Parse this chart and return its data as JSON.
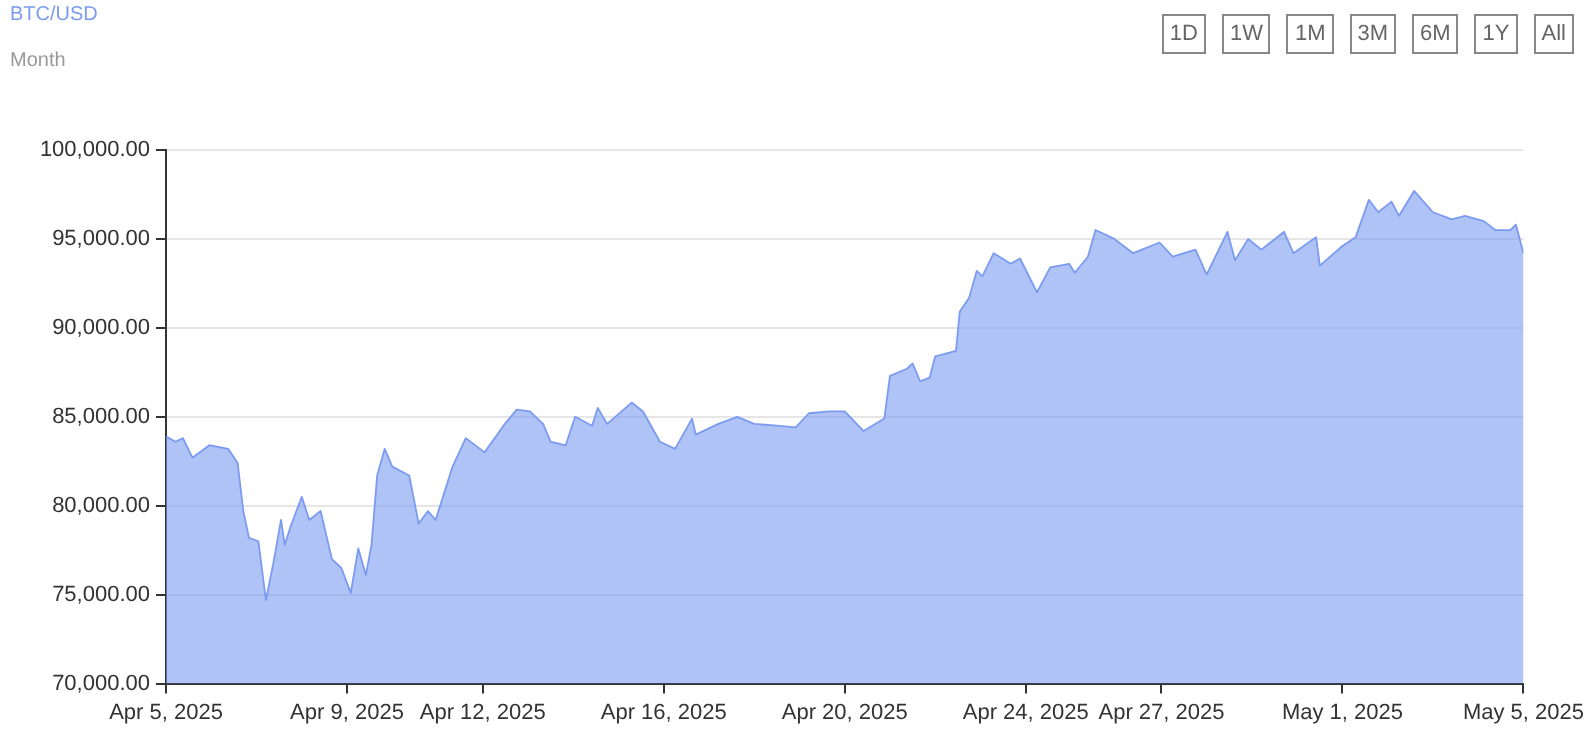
{
  "chart_data": {
    "type": "area",
    "title": "BTC/USD",
    "subtitle": "Month",
    "annotations": [
      "1D",
      "1W",
      "1M",
      "3M",
      "6M",
      "1Y",
      "All"
    ],
    "x": [
      "2025-04-05T00:00",
      "2025-04-05T05:00",
      "2025-04-05T09:00",
      "2025-04-05T14:00",
      "2025-04-05T23:00",
      "2025-04-06T09:00",
      "2025-04-06T14:00",
      "2025-04-06T17:00",
      "2025-04-06T20:00",
      "2025-04-07T01:00",
      "2025-04-07T05:00",
      "2025-04-07T09:00",
      "2025-04-07T13:00",
      "2025-04-07T15:00",
      "2025-04-07T18:00",
      "2025-04-08T00:00",
      "2025-04-08T04:00",
      "2025-04-08T10:00",
      "2025-04-08T16:00",
      "2025-04-08T21:00",
      "2025-04-09T02:00",
      "2025-04-09T06:00",
      "2025-04-09T10:00",
      "2025-04-09T13:00",
      "2025-04-09T16:00",
      "2025-04-09T20:00",
      "2025-04-10T00:00",
      "2025-04-10T09:00",
      "2025-04-10T14:00",
      "2025-04-10T19:00",
      "2025-04-10T23:00",
      "2025-04-11T08:00",
      "2025-04-11T15:00",
      "2025-04-12T01:00",
      "2025-04-12T11:00",
      "2025-04-12T18:00",
      "2025-04-13T01:00",
      "2025-04-13T08:00",
      "2025-04-13T12:00",
      "2025-04-13T20:00",
      "2025-04-14T01:00",
      "2025-04-14T10:00",
      "2025-04-14T13:00",
      "2025-04-14T18:00",
      "2025-04-15T07:00",
      "2025-04-15T13:00",
      "2025-04-15T22:00",
      "2025-04-16T06:00",
      "2025-04-16T15:00",
      "2025-04-16T17:00",
      "2025-04-17T05:00",
      "2025-04-17T15:00",
      "2025-04-18T00:00",
      "2025-04-18T12:00",
      "2025-04-18T22:00",
      "2025-04-19T05:00",
      "2025-04-19T16:00",
      "2025-04-20T00:00",
      "2025-04-20T10:00",
      "2025-04-20T21:00",
      "2025-04-21T00:00",
      "2025-04-21T09:00",
      "2025-04-21T12:00",
      "2025-04-21T16:00",
      "2025-04-21T21:00",
      "2025-04-22T00:00",
      "2025-04-22T11:00",
      "2025-04-22T13:00",
      "2025-04-22T18:00",
      "2025-04-22T22:00",
      "2025-04-23T01:00",
      "2025-04-23T07:00",
      "2025-04-23T16:00",
      "2025-04-23T21:00",
      "2025-04-24T06:00",
      "2025-04-24T13:00",
      "2025-04-24T23:00",
      "2025-04-25T02:00",
      "2025-04-25T09:00",
      "2025-04-25T13:00",
      "2025-04-25T23:00",
      "2025-04-26T09:00",
      "2025-04-26T23:00",
      "2025-04-27T06:00",
      "2025-04-27T18:00",
      "2025-04-28T00:00",
      "2025-04-28T11:00",
      "2025-04-28T15:00",
      "2025-04-28T22:00",
      "2025-04-29T05:00",
      "2025-04-29T17:00",
      "2025-04-29T22:00",
      "2025-04-30T10:00",
      "2025-04-30T12:00",
      "2025-05-01T00:00",
      "2025-05-01T07:00",
      "2025-05-01T14:00",
      "2025-05-01T19:00",
      "2025-05-02T02:00",
      "2025-05-02T06:00",
      "2025-05-02T14:00",
      "2025-05-03T00:00",
      "2025-05-03T10:00",
      "2025-05-03T17:00",
      "2025-05-04T03:00",
      "2025-05-04T09:00",
      "2025-05-04T17:00",
      "2025-05-04T20:00",
      "2025-05-05T00:00"
    ],
    "series": [
      {
        "color": "#7b9bf0",
        "values": [
          83900,
          83600,
          83800,
          82700,
          83400,
          83200,
          82400,
          79700,
          78200,
          78000,
          74700,
          76800,
          79200,
          77800,
          78800,
          80500,
          79200,
          79700,
          77000,
          76500,
          75100,
          77600,
          76100,
          77800,
          81700,
          83200,
          82200,
          81700,
          79000,
          79700,
          79200,
          82200,
          83800,
          83000,
          84500,
          85400,
          85300,
          84600,
          83600,
          83400,
          85000,
          84500,
          85500,
          84600,
          85800,
          85300,
          83600,
          83200,
          84900,
          84000,
          84600,
          85000,
          84600,
          84500,
          84400,
          85200,
          85300,
          85300,
          84200,
          84900,
          87300,
          87700,
          88000,
          87000,
          87200,
          88400,
          88700,
          90900,
          91700,
          93200,
          92900,
          94200,
          93600,
          93900,
          92000,
          93400,
          93600,
          93100,
          94000,
          95500,
          95000,
          94200,
          94800,
          94000,
          94400,
          93000,
          95400,
          93800,
          95000,
          94400,
          95400,
          94200,
          95100,
          93500,
          94600,
          95100,
          97200,
          96500,
          97100,
          96300,
          97700,
          96500,
          96100,
          96300,
          96000,
          95500,
          95500,
          95800,
          94200
        ]
      }
    ],
    "ylim": [
      70000,
      100000
    ],
    "yticks": [
      {
        "value": 70000,
        "label": "70,000.00"
      },
      {
        "value": 75000,
        "label": "75,000.00"
      },
      {
        "value": 80000,
        "label": "80,000.00"
      },
      {
        "value": 85000,
        "label": "85,000.00"
      },
      {
        "value": 90000,
        "label": "90,000.00"
      },
      {
        "value": 95000,
        "label": "95,000.00"
      },
      {
        "value": 100000,
        "label": "100,000.00"
      }
    ],
    "xlim": [
      "2025-04-05",
      "2025-05-05"
    ],
    "xticks": [
      {
        "value": "2025-04-05T00:00",
        "label": "Apr 5, 2025"
      },
      {
        "value": "2025-04-09",
        "label": "Apr 9, 2025"
      },
      {
        "value": "2025-04-12",
        "label": "Apr 12, 2025"
      },
      {
        "value": "2025-04-16",
        "label": "Apr 16, 2025"
      },
      {
        "value": "2025-04-20T00:00",
        "label": "Apr 20, 2025"
      },
      {
        "value": "2025-04-24",
        "label": "Apr 24, 2025"
      },
      {
        "value": "2025-04-27",
        "label": "Apr 27, 2025"
      },
      {
        "value": "2025-05-01",
        "label": "May 1, 2025"
      },
      {
        "value": "2025-05-05T00:00",
        "label": "May 5, 2025"
      }
    ],
    "grid": "y",
    "legend": false,
    "marker": "none",
    "line_style": "solid"
  }
}
